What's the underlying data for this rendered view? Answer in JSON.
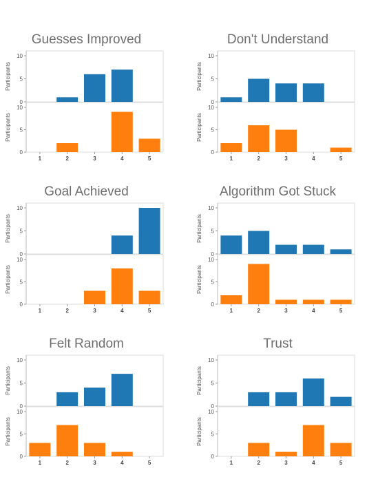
{
  "chart_data": [
    {
      "type": "bar",
      "title": "Guesses Improved",
      "ylabel": "Participants",
      "categories": [
        "1",
        "2",
        "3",
        "4",
        "5"
      ],
      "ylim": [
        0,
        10
      ],
      "yticks": [
        0,
        5,
        10
      ],
      "series": [
        {
          "values": [
            0,
            1,
            6,
            7,
            0
          ],
          "color": "#1f77b4"
        },
        {
          "values": [
            0,
            2,
            0,
            9,
            3
          ],
          "color": "#ff7f0e"
        }
      ]
    },
    {
      "type": "bar",
      "title": "Don't Understand",
      "ylabel": "Participants",
      "categories": [
        "1",
        "2",
        "3",
        "4",
        "5"
      ],
      "ylim": [
        0,
        10
      ],
      "yticks": [
        0,
        5,
        10
      ],
      "series": [
        {
          "values": [
            1,
            5,
            4,
            4,
            0
          ],
          "color": "#1f77b4"
        },
        {
          "values": [
            2,
            6,
            5,
            0,
            1
          ],
          "color": "#ff7f0e"
        }
      ]
    },
    {
      "type": "bar",
      "title": "Goal Achieved",
      "ylabel": "Participants",
      "categories": [
        "1",
        "2",
        "3",
        "4",
        "5"
      ],
      "ylim": [
        0,
        10
      ],
      "yticks": [
        0,
        5,
        10
      ],
      "series": [
        {
          "values": [
            0,
            0,
            0,
            4,
            10
          ],
          "color": "#1f77b4"
        },
        {
          "values": [
            0,
            0,
            3,
            8,
            3
          ],
          "color": "#ff7f0e"
        }
      ]
    },
    {
      "type": "bar",
      "title": "Algorithm Got Stuck",
      "ylabel": "Participants",
      "categories": [
        "1",
        "2",
        "3",
        "4",
        "5"
      ],
      "ylim": [
        0,
        10
      ],
      "yticks": [
        0,
        5,
        10
      ],
      "series": [
        {
          "values": [
            4,
            5,
            2,
            2,
            1
          ],
          "color": "#1f77b4"
        },
        {
          "values": [
            2,
            9,
            1,
            1,
            1
          ],
          "color": "#ff7f0e"
        }
      ]
    },
    {
      "type": "bar",
      "title": "Felt Random",
      "ylabel": "Participants",
      "categories": [
        "1",
        "2",
        "3",
        "4",
        "5"
      ],
      "ylim": [
        0,
        10
      ],
      "yticks": [
        0,
        5,
        10
      ],
      "series": [
        {
          "values": [
            0,
            3,
            4,
            7,
            0
          ],
          "color": "#1f77b4"
        },
        {
          "values": [
            3,
            7,
            3,
            1,
            0
          ],
          "color": "#ff7f0e"
        }
      ]
    },
    {
      "type": "bar",
      "title": "Trust",
      "ylabel": "Participants",
      "categories": [
        "1",
        "2",
        "3",
        "4",
        "5"
      ],
      "ylim": [
        0,
        10
      ],
      "yticks": [
        0,
        5,
        10
      ],
      "series": [
        {
          "values": [
            0,
            3,
            3,
            6,
            2
          ],
          "color": "#1f77b4"
        },
        {
          "values": [
            0,
            3,
            1,
            7,
            3
          ],
          "color": "#ff7f0e"
        }
      ]
    }
  ]
}
